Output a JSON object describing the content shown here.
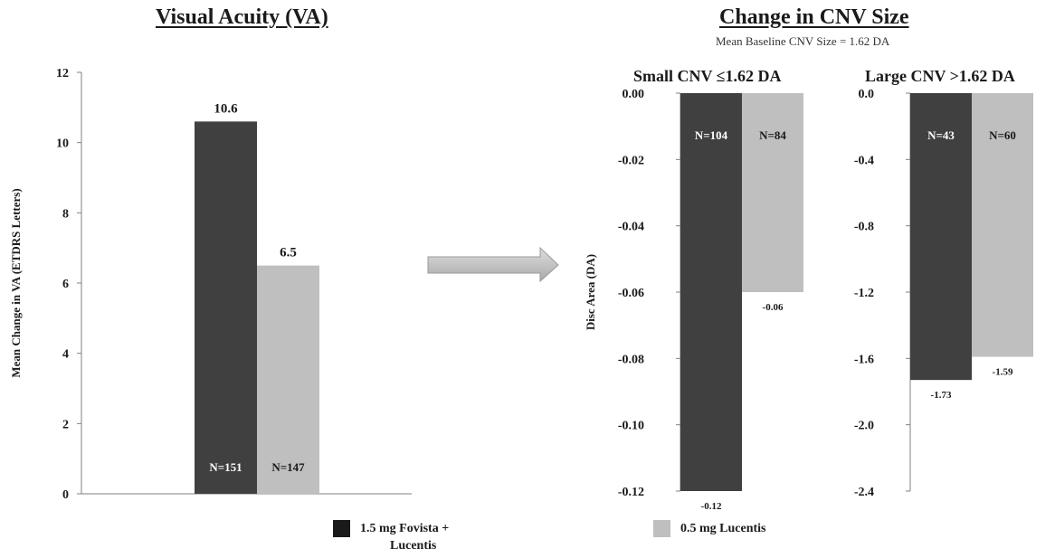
{
  "va_title": "Visual Acuity (VA)",
  "cnv_title": "Change in CNV Size",
  "cnv_subtitle": "Mean Baseline CNV Size = 1.62 DA",
  "small_title": "Small CNV ≤1.62 DA",
  "large_title": "Large CNV >1.62 DA",
  "colors": {
    "fovista": "#404040",
    "lucentis": "#bfbfbf"
  },
  "legend": [
    {
      "label_line1": "1.5 mg Fovista +",
      "label_line2": "Lucentis",
      "color": "#1a1a1a"
    },
    {
      "label_line1": "0.5 mg Lucentis",
      "label_line2": "",
      "color": "#bfbfbf"
    }
  ],
  "chart_data": [
    {
      "type": "bar",
      "title": "Visual Acuity (VA)",
      "ylabel": "Mean Change in VA (ETDRS Letters)",
      "ylim": [
        0,
        12
      ],
      "yticks": [
        "0",
        "2",
        "4",
        "6",
        "8",
        "10",
        "12"
      ],
      "series": [
        {
          "name": "1.5 mg Fovista + Lucentis",
          "value": 10.6,
          "label": "10.6",
          "n": "N=151"
        },
        {
          "name": "0.5 mg Lucentis",
          "value": 6.5,
          "label": "6.5",
          "n": "N=147"
        }
      ],
      "legend": "bottom",
      "grid": false
    },
    {
      "type": "bar",
      "title": "Small CNV ≤1.62 DA",
      "ylabel": "Disc Area (DA)",
      "ylim": [
        -0.12,
        0
      ],
      "yticks": [
        "0.00",
        "-0.02",
        "-0.04",
        "-0.06",
        "-0.08",
        "-0.10",
        "-0.12"
      ],
      "series": [
        {
          "name": "1.5 mg Fovista + Lucentis",
          "value": -0.12,
          "label": "-0.12",
          "n": "N=104"
        },
        {
          "name": "0.5 mg Lucentis",
          "value": -0.06,
          "label": "-0.06",
          "n": "N=84"
        }
      ],
      "grid": false
    },
    {
      "type": "bar",
      "title": "Large CNV >1.62 DA",
      "ylabel": "",
      "ylim": [
        -2.4,
        0
      ],
      "yticks": [
        "0.0",
        "-0.4",
        "-0.8",
        "-1.2",
        "-1.6",
        "-2.0",
        "-2.4"
      ],
      "series": [
        {
          "name": "1.5 mg Fovista + Lucentis",
          "value": -1.73,
          "label": "-1.73",
          "n": "N=43"
        },
        {
          "name": "0.5 mg Lucentis",
          "value": -1.59,
          "label": "-1.59",
          "n": "N=60"
        }
      ],
      "grid": false
    }
  ]
}
